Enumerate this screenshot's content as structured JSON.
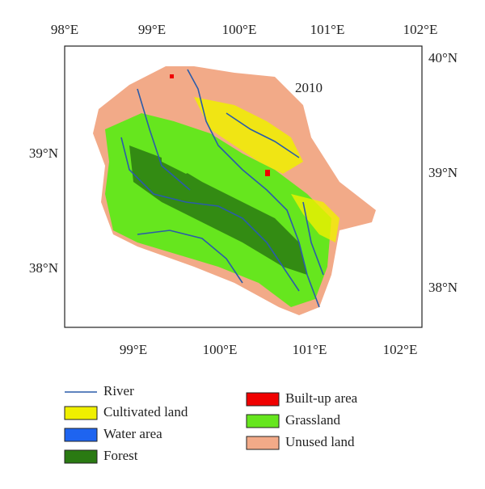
{
  "map_label": "2010",
  "top_ticks": [
    "98°E",
    "99°E",
    "100°E",
    "101°E",
    "102°E"
  ],
  "bottom_ticks": [
    "99°E",
    "100°E",
    "101°E",
    "102°E"
  ],
  "left_ticks": [
    "39°N",
    "38°N"
  ],
  "right_ticks": [
    "40°N",
    "39°N",
    "38°N"
  ],
  "legend": [
    {
      "name": "River",
      "color": "#2a5caa"
    },
    {
      "name": "Cultivated land",
      "color": "#f0f000"
    },
    {
      "name": "Water area",
      "color": "#1e64f0"
    },
    {
      "name": "Forest",
      "color": "#2a7a12"
    },
    {
      "name": "Built-up area",
      "color": "#f00000"
    },
    {
      "name": "Grassland",
      "color": "#66e61e"
    },
    {
      "name": "Unused land",
      "color": "#f2aa88"
    }
  ]
}
